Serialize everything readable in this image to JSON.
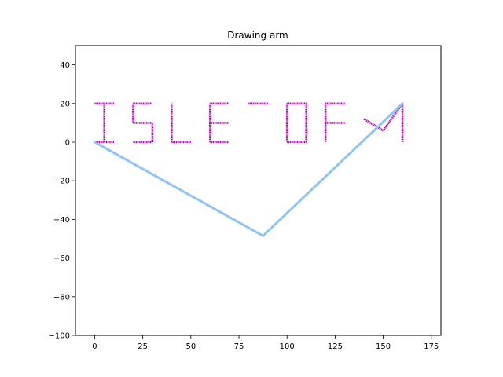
{
  "chart_data": {
    "type": "line",
    "title": "Drawing arm",
    "xlabel": "",
    "ylabel": "",
    "xlim": [
      -10,
      180
    ],
    "ylim": [
      -100,
      50
    ],
    "xticks": [
      0,
      25,
      50,
      75,
      100,
      125,
      150,
      175
    ],
    "yticks": [
      -100,
      -80,
      -60,
      -40,
      -20,
      0,
      20,
      40
    ],
    "grid": false,
    "series": [
      {
        "color": "#90c4f8",
        "style": "line",
        "values": [
          [
            0,
            0
          ],
          [
            87.5,
            -48.5
          ],
          [
            160,
            20
          ]
        ]
      },
      {
        "color": "#b400b4",
        "style": "strokes",
        "text_drawn": "ISLE OF M",
        "segments": [
          [
            [
              0,
              20
            ],
            [
              10,
              20
            ]
          ],
          [
            [
              5,
              20
            ],
            [
              5,
              0
            ]
          ],
          [
            [
              0,
              0
            ],
            [
              10,
              0
            ]
          ],
          [
            [
              20,
              20
            ],
            [
              30,
              20
            ]
          ],
          [
            [
              20,
              20
            ],
            [
              20,
              10
            ]
          ],
          [
            [
              20,
              10
            ],
            [
              30,
              10
            ]
          ],
          [
            [
              30,
              10
            ],
            [
              30,
              0
            ]
          ],
          [
            [
              20,
              0
            ],
            [
              30,
              0
            ]
          ],
          [
            [
              40,
              20
            ],
            [
              40,
              0
            ]
          ],
          [
            [
              40,
              0
            ],
            [
              50,
              0
            ]
          ],
          [
            [
              60,
              20
            ],
            [
              70,
              20
            ]
          ],
          [
            [
              60,
              20
            ],
            [
              60,
              0
            ]
          ],
          [
            [
              60,
              10
            ],
            [
              70,
              10
            ]
          ],
          [
            [
              60,
              0
            ],
            [
              70,
              0
            ]
          ],
          [
            [
              80,
              20
            ],
            [
              90,
              20
            ]
          ],
          [
            [
              100,
              20
            ],
            [
              110,
              20
            ]
          ],
          [
            [
              100,
              20
            ],
            [
              100,
              0
            ]
          ],
          [
            [
              110,
              20
            ],
            [
              110,
              0
            ]
          ],
          [
            [
              100,
              0
            ],
            [
              110,
              0
            ]
          ],
          [
            [
              120,
              20
            ],
            [
              130,
              20
            ]
          ],
          [
            [
              120,
              20
            ],
            [
              120,
              0
            ]
          ],
          [
            [
              120,
              10
            ],
            [
              130,
              10
            ]
          ],
          [
            [
              140,
              12
            ],
            [
              150,
              6
            ]
          ],
          [
            [
              150,
              6
            ],
            [
              160,
              20
            ]
          ],
          [
            [
              160,
              20
            ],
            [
              160,
              0
            ]
          ]
        ]
      }
    ]
  }
}
